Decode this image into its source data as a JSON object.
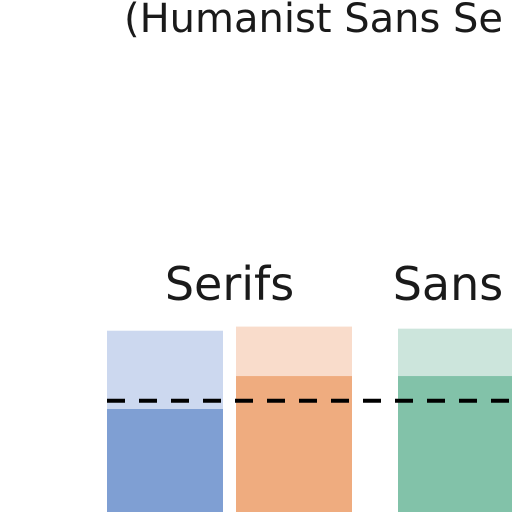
{
  "chart_data": {
    "type": "bar",
    "title": "(Humanist Sans Se",
    "groups": [
      {
        "label": "Serifs",
        "bars": [
          {
            "top_value": 88,
            "mid_value": 50,
            "light_color": "#ccd8ef",
            "dark_color": "#7f9fd3"
          },
          {
            "top_value": 90,
            "mid_value": 66,
            "light_color": "#f9dccb",
            "dark_color": "#efac7f"
          }
        ]
      },
      {
        "label": "Sans",
        "bars": [
          {
            "top_value": 89,
            "mid_value": 66,
            "light_color": "#cce5dc",
            "dark_color": "#82c2a9"
          }
        ]
      }
    ],
    "reference_line": 54,
    "ylim": [
      0,
      108
    ],
    "reference_style": "dashed black"
  }
}
